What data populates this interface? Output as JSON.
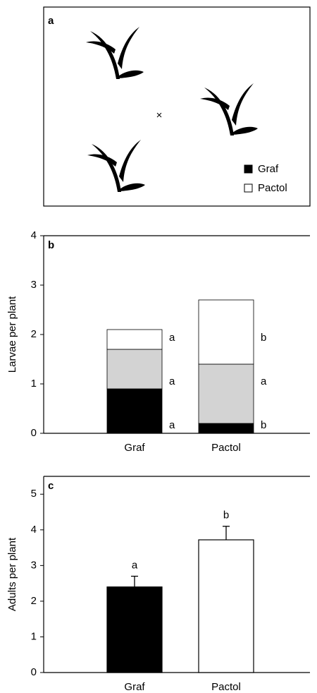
{
  "diagram": {
    "label": "a",
    "marker": "×",
    "legend": [
      {
        "name": "Graf",
        "color": "#000000"
      },
      {
        "name": "Pactol",
        "color": "#ffffff"
      }
    ]
  },
  "chart_data": [
    {
      "type": "bar",
      "stacked": true,
      "panel_label": "b",
      "ylabel": "Larvae per plant",
      "categories": [
        "Graf",
        "Pactol"
      ],
      "ylim": [
        0,
        4
      ],
      "yticks": [
        0,
        1,
        2,
        3,
        4
      ],
      "series": [
        {
          "color": "#000000",
          "values": [
            0.9,
            0.2
          ],
          "letters": [
            "a",
            "b"
          ]
        },
        {
          "color": "#d3d3d3",
          "values": [
            0.8,
            1.2
          ],
          "letters": [
            "a",
            "a"
          ]
        },
        {
          "color": "#ffffff",
          "values": [
            0.4,
            1.3
          ],
          "letters": [
            "a",
            "b"
          ]
        }
      ]
    },
    {
      "type": "bar",
      "panel_label": "c",
      "ylabel": "Adults per plant",
      "categories": [
        "Graf",
        "Pactol"
      ],
      "ylim": [
        0,
        5.5
      ],
      "yticks": [
        0,
        1,
        2,
        3,
        4,
        5
      ],
      "values": [
        2.4,
        3.72
      ],
      "errors": [
        0.3,
        0.38
      ],
      "colors": [
        "#000000",
        "#ffffff"
      ],
      "letters": [
        "a",
        "b"
      ]
    }
  ]
}
